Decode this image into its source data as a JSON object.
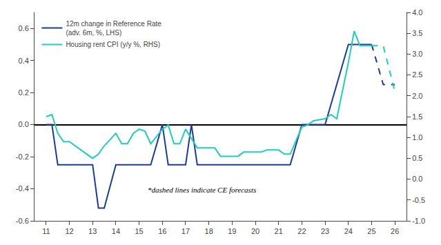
{
  "chart_data": {
    "type": "line",
    "xlim": [
      10.5,
      26.5
    ],
    "xticks": [
      11,
      12,
      13,
      14,
      15,
      16,
      17,
      18,
      19,
      20,
      21,
      22,
      23,
      24,
      25,
      26
    ],
    "ylim": [
      -0.6,
      0.7
    ],
    "yticks": [
      -0.6,
      -0.4,
      -0.2,
      {
        "value": 0.0,
        "label": "0.0"
      },
      0.2,
      0.4,
      0.6
    ],
    "y2lim": [
      -1.0,
      4.0
    ],
    "y2ticks": [
      {
        "value": -1.0,
        "label": "-1.0"
      },
      -0.5,
      {
        "value": 0.0,
        "label": "0.0"
      },
      0.5,
      {
        "value": 1.0,
        "label": "1.0"
      },
      1.5,
      {
        "value": 2.0,
        "label": "2.0"
      },
      2.5,
      {
        "value": 3.0,
        "label": "3.0"
      },
      3.5,
      {
        "value": 4.0,
        "label": "4.0"
      }
    ],
    "grid": false,
    "legend": "upper left",
    "annotation": "*dashed lines indicate CE forecasts",
    "series": [
      {
        "name": "12m change in Reference Rate\n(adv. 6m, %, LHS)",
        "color": "#1a3a9e",
        "line_style": "solid",
        "x": [
          11,
          11.25,
          11.5,
          12,
          12.5,
          13,
          13.25,
          13.5,
          14,
          14.5,
          15,
          15.5,
          16,
          16.25,
          16.5,
          17,
          17.25,
          17.5,
          18,
          18.5,
          19,
          19.25,
          19.5,
          20,
          20.5,
          21,
          21.25,
          21.5,
          22,
          22.5,
          23,
          23.5,
          24,
          24.5,
          25
        ],
        "values": [
          0.0,
          0.0,
          -0.25,
          -0.25,
          -0.25,
          -0.25,
          -0.52,
          -0.52,
          -0.25,
          -0.25,
          -0.25,
          -0.25,
          0.0,
          -0.25,
          -0.25,
          -0.25,
          0.0,
          -0.25,
          -0.25,
          -0.25,
          -0.25,
          -0.25,
          -0.25,
          -0.25,
          -0.25,
          -0.25,
          -0.25,
          -0.25,
          0.0,
          0.0,
          0.0,
          0.25,
          0.5,
          0.5,
          0.5
        ]
      },
      {
        "color": "#1a3a9e",
        "line_style": "dashed",
        "x": [
          25,
          25.5,
          26
        ],
        "values": [
          0.5,
          0.25,
          0.25
        ]
      },
      {
        "name": "Housing rent CPI (y/y %, RHS)",
        "color": "#1ecfb8",
        "line_style": "solid",
        "axis": "y2",
        "x": [
          11,
          11.25,
          11.5,
          11.75,
          12,
          12.5,
          13,
          13.25,
          13.5,
          14,
          14.25,
          14.5,
          14.75,
          15,
          15.25,
          15.5,
          16,
          16.25,
          16.5,
          16.75,
          17,
          17.5,
          18,
          18.25,
          18.5,
          19,
          19.25,
          19.5,
          19.75,
          20,
          20.25,
          20.5,
          21,
          21.25,
          21.5,
          22,
          22.25,
          22.5,
          23,
          23.25,
          23.5,
          24,
          24.25,
          24.5,
          25
        ],
        "values": [
          1.5,
          1.55,
          1.1,
          0.9,
          0.9,
          0.7,
          0.5,
          0.6,
          0.8,
          1.1,
          0.85,
          0.85,
          1.1,
          1.2,
          1.15,
          0.85,
          1.2,
          1.3,
          0.85,
          0.85,
          1.2,
          0.75,
          0.75,
          0.75,
          0.55,
          0.55,
          0.55,
          0.65,
          0.65,
          0.65,
          0.65,
          0.7,
          0.7,
          0.6,
          0.6,
          1.25,
          1.3,
          1.4,
          1.45,
          1.55,
          1.45,
          2.8,
          3.55,
          3.2,
          3.2
        ]
      },
      {
        "color": "#1ecfb8",
        "line_style": "dashed",
        "axis": "y2",
        "x": [
          25,
          25.5,
          26
        ],
        "values": [
          3.2,
          3.2,
          2.1
        ]
      }
    ]
  }
}
